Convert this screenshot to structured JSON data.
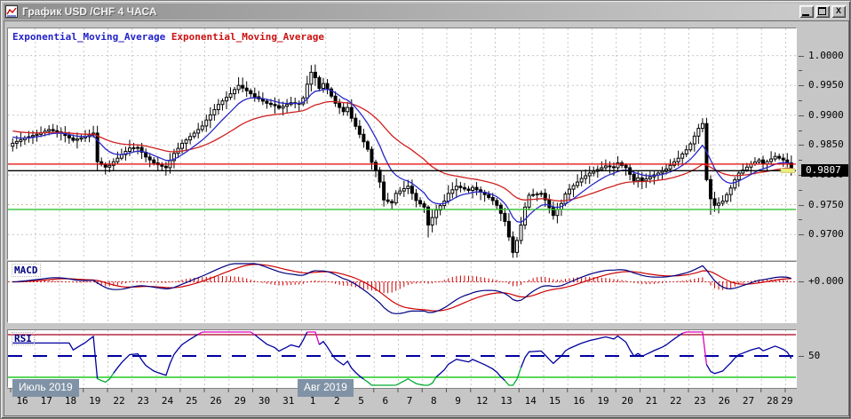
{
  "window": {
    "title": "График USD /CHF 4 ЧАСА",
    "icon": "chart-icon",
    "buttons": {
      "minimize": "_",
      "maximize": "□",
      "close": "X"
    }
  },
  "legend": {
    "ema_fast": {
      "label": "Exponential_Moving_Average",
      "color": "#2222cc"
    },
    "ema_slow": {
      "label": "Exponential_Moving_Average",
      "color": "#cc1111"
    }
  },
  "price_axis": {
    "labels": [
      "1.0000",
      "0.9950",
      "0.9900",
      "0.9850",
      "0.9800",
      "0.9750",
      "0.9700"
    ],
    "current": "0.9807"
  },
  "indicators": {
    "macd": {
      "label": "MACD",
      "axis_label": "+0.000"
    },
    "rsi": {
      "label": "RSI",
      "axis_label": "50"
    }
  },
  "x_axis": {
    "month_badges": [
      {
        "label": "Июль 2019"
      },
      {
        "label": "Авг 2019"
      }
    ],
    "days": [
      "16",
      "17",
      "18",
      "19",
      "22",
      "23",
      "24",
      "25",
      "26",
      "29",
      "30",
      "31",
      "1",
      "2",
      "5",
      "6",
      "7",
      "8",
      "9",
      "12",
      "13",
      "14",
      "15",
      "16",
      "19",
      "20",
      "21",
      "22",
      "23",
      "26",
      "27",
      "28",
      "29"
    ]
  },
  "chart_data": {
    "type": "candlestick",
    "instrument": "USD/CHF",
    "timeframe": "4 часа",
    "bars": 194,
    "bars_per_day": 6,
    "close_keyframes": [
      [
        0,
        0.9853
      ],
      [
        3,
        0.9862
      ],
      [
        6,
        0.9868
      ],
      [
        9,
        0.9876
      ],
      [
        12,
        0.987
      ],
      [
        15,
        0.9858
      ],
      [
        18,
        0.9864
      ],
      [
        20,
        0.987
      ],
      [
        21,
        0.9822
      ],
      [
        23,
        0.9813
      ],
      [
        24,
        0.9816
      ],
      [
        27,
        0.9834
      ],
      [
        29,
        0.9845
      ],
      [
        31,
        0.9846
      ],
      [
        33,
        0.983
      ],
      [
        35,
        0.982
      ],
      [
        36,
        0.9817
      ],
      [
        38,
        0.9812
      ],
      [
        40,
        0.9836
      ],
      [
        42,
        0.9853
      ],
      [
        45,
        0.987
      ],
      [
        47,
        0.9882
      ],
      [
        48,
        0.9892
      ],
      [
        51,
        0.9918
      ],
      [
        53,
        0.993
      ],
      [
        54,
        0.9936
      ],
      [
        56,
        0.995
      ],
      [
        58,
        0.9941
      ],
      [
        60,
        0.9931
      ],
      [
        63,
        0.992
      ],
      [
        65,
        0.9916
      ],
      [
        66,
        0.9912
      ],
      [
        69,
        0.9921
      ],
      [
        71,
        0.9919
      ],
      [
        72,
        0.9929
      ],
      [
        73,
        0.9952
      ],
      [
        74,
        0.9972
      ],
      [
        75,
        0.9963
      ],
      [
        76,
        0.9945
      ],
      [
        77,
        0.9953
      ],
      [
        78,
        0.9944
      ],
      [
        80,
        0.992
      ],
      [
        82,
        0.9906
      ],
      [
        83,
        0.9913
      ],
      [
        84,
        0.9895
      ],
      [
        86,
        0.9868
      ],
      [
        88,
        0.9843
      ],
      [
        89,
        0.9821
      ],
      [
        90,
        0.9808
      ],
      [
        91,
        0.9788
      ],
      [
        92,
        0.9758
      ],
      [
        94,
        0.9753
      ],
      [
        95,
        0.9769
      ],
      [
        96,
        0.9773
      ],
      [
        98,
        0.9781
      ],
      [
        100,
        0.9757
      ],
      [
        102,
        0.9746
      ],
      [
        103,
        0.9716
      ],
      [
        105,
        0.9741
      ],
      [
        107,
        0.9756
      ],
      [
        108,
        0.9769
      ],
      [
        110,
        0.9781
      ],
      [
        113,
        0.9774
      ],
      [
        114,
        0.9779
      ],
      [
        117,
        0.9767
      ],
      [
        119,
        0.9757
      ],
      [
        120,
        0.9749
      ],
      [
        122,
        0.9722
      ],
      [
        124,
        0.967
      ],
      [
        125,
        0.969
      ],
      [
        126,
        0.9716
      ],
      [
        127,
        0.9746
      ],
      [
        128,
        0.9766
      ],
      [
        131,
        0.9769
      ],
      [
        132,
        0.9758
      ],
      [
        134,
        0.9732
      ],
      [
        136,
        0.9752
      ],
      [
        137,
        0.9768
      ],
      [
        138,
        0.9776
      ],
      [
        141,
        0.9794
      ],
      [
        143,
        0.9803
      ],
      [
        144,
        0.9806
      ],
      [
        147,
        0.9815
      ],
      [
        149,
        0.9812
      ],
      [
        150,
        0.982
      ],
      [
        152,
        0.9812
      ],
      [
        154,
        0.979
      ],
      [
        155,
        0.9795
      ],
      [
        156,
        0.979
      ],
      [
        159,
        0.98
      ],
      [
        161,
        0.9806
      ],
      [
        162,
        0.981
      ],
      [
        165,
        0.9828
      ],
      [
        167,
        0.9842
      ],
      [
        168,
        0.9852
      ],
      [
        170,
        0.9878
      ],
      [
        171,
        0.9886
      ],
      [
        172,
        0.9792
      ],
      [
        173,
        0.976
      ],
      [
        174,
        0.9749
      ],
      [
        176,
        0.9756
      ],
      [
        178,
        0.9778
      ],
      [
        179,
        0.9792
      ],
      [
        180,
        0.9803
      ],
      [
        183,
        0.9818
      ],
      [
        185,
        0.9825
      ],
      [
        186,
        0.9818
      ],
      [
        189,
        0.9831
      ],
      [
        191,
        0.9825
      ],
      [
        192,
        0.982
      ],
      [
        193,
        0.9807
      ]
    ],
    "wick_overrides": {
      "21": {
        "low": 0.9806
      },
      "74": {
        "high": 0.9984
      },
      "103": {
        "low": 0.9695
      },
      "124": {
        "low": 0.9663
      },
      "171": {
        "high": 0.9895
      },
      "173": {
        "low": 0.9733
      }
    },
    "levels": {
      "resistance": 0.9818,
      "current_price": 0.9807,
      "support": 0.9742
    },
    "grid_levels": [
      1.0,
      0.995,
      0.99,
      0.985,
      0.98,
      0.975,
      0.97
    ],
    "ema": {
      "fast_period": 10,
      "slow_period": 32
    },
    "macd": {
      "fast": 12,
      "slow": 26,
      "signal": 9,
      "zero_value": "+0.000"
    },
    "rsi": {
      "period": 14,
      "upper": 70,
      "middle": 50,
      "lower": 30
    },
    "colors": {
      "up_candle": "#ffffff",
      "down_candle": "#000000",
      "wick": "#000000",
      "ema_fast": "#2929c8",
      "ema_slow": "#d02020",
      "resistance_line": "#e00000",
      "price_line": "#000000",
      "support_line": "#30c030",
      "grid": "#c7c7c7",
      "grid_special": "#c9bd8f",
      "macd_line": "#000080",
      "macd_signal": "#cc0000",
      "macd_hist": "#cc0000",
      "macd_zero": "#cc4444",
      "rsi_line": "#0000a0",
      "rsi_over": "#dd00bb",
      "rsi_under": "#00aa33",
      "rsi_upper_line": "#aa0022",
      "rsi_lower_line": "#22cc22",
      "rsi_mid_line": "#0000a0",
      "current_marker": "#eded7d"
    }
  }
}
